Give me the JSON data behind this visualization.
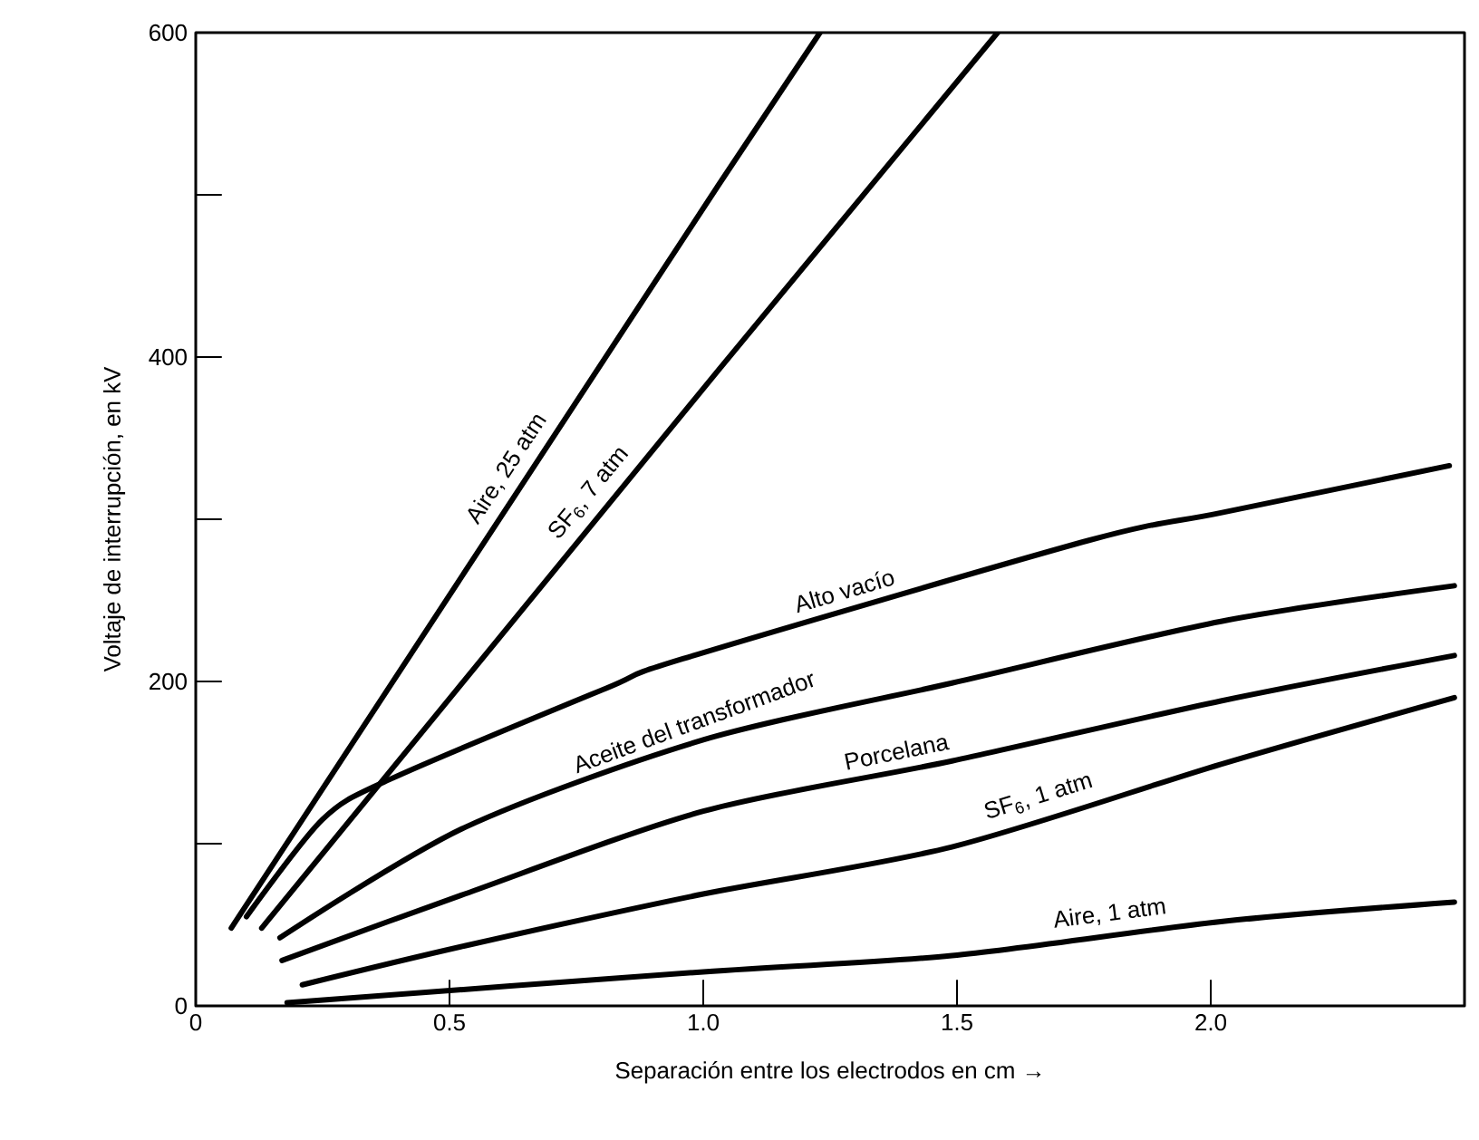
{
  "chart_data": {
    "type": "line",
    "xlabel": "Separación entre los electrodos en cm →",
    "ylabel": "Voltaje de interrupción, en kV",
    "xlim": [
      0,
      2.5
    ],
    "ylim": [
      0,
      600
    ],
    "xticks": [
      0,
      0.5,
      {
        "value": 1.0,
        "label": "1.0"
      },
      1.5,
      {
        "value": 2.0,
        "label": "2.0"
      }
    ],
    "yticks": [
      0,
      {
        "value": 100,
        "label": null
      },
      200,
      {
        "value": 300,
        "label": null
      },
      400,
      {
        "value": 500,
        "label": null
      },
      600
    ],
    "series": [
      {
        "name": "Aire, 25 atm",
        "color": "#000000",
        "x": [
          0.07,
          1.03,
          1.23
        ],
        "values": [
          48,
          506,
          600
        ]
      },
      {
        "name": "SF$_{6}$, 7 atm",
        "color": "#000000",
        "x": [
          0.13,
          1.03,
          1.58
        ],
        "values": [
          48,
          392,
          600
        ]
      },
      {
        "name": "Alto vacío",
        "color": "#000000",
        "x": [
          0.1,
          0.25,
          0.385,
          0.81,
          0.96,
          1.76,
          2.02,
          2.47
        ],
        "values": [
          55,
          115,
          140,
          196,
          214,
          287,
          304,
          333
        ]
      },
      {
        "name": "Aceite del transformador",
        "color": "#000000",
        "x": [
          0.166,
          0.53,
          1.0,
          1.49,
          2.02,
          2.48
        ],
        "values": [
          42,
          110,
          164,
          199,
          237,
          259
        ]
      },
      {
        "name": "Porcelana",
        "color": "#000000",
        "x": [
          0.17,
          0.53,
          1.0,
          1.49,
          2.02,
          2.48
        ],
        "values": [
          28,
          69,
          120,
          151,
          188,
          216
        ]
      },
      {
        "name": "SF$_{6}$, 1 atm",
        "color": "#000000",
        "x": [
          0.21,
          0.53,
          1.0,
          1.49,
          2.02,
          2.48
        ],
        "values": [
          13,
          37,
          69,
          98,
          149,
          190
        ]
      },
      {
        "name": "Aire, 1 atm",
        "color": "#000000",
        "x": [
          0.18,
          1.0,
          1.49,
          2.02,
          2.48
        ],
        "values": [
          2,
          21,
          31,
          52,
          64
        ]
      }
    ]
  }
}
